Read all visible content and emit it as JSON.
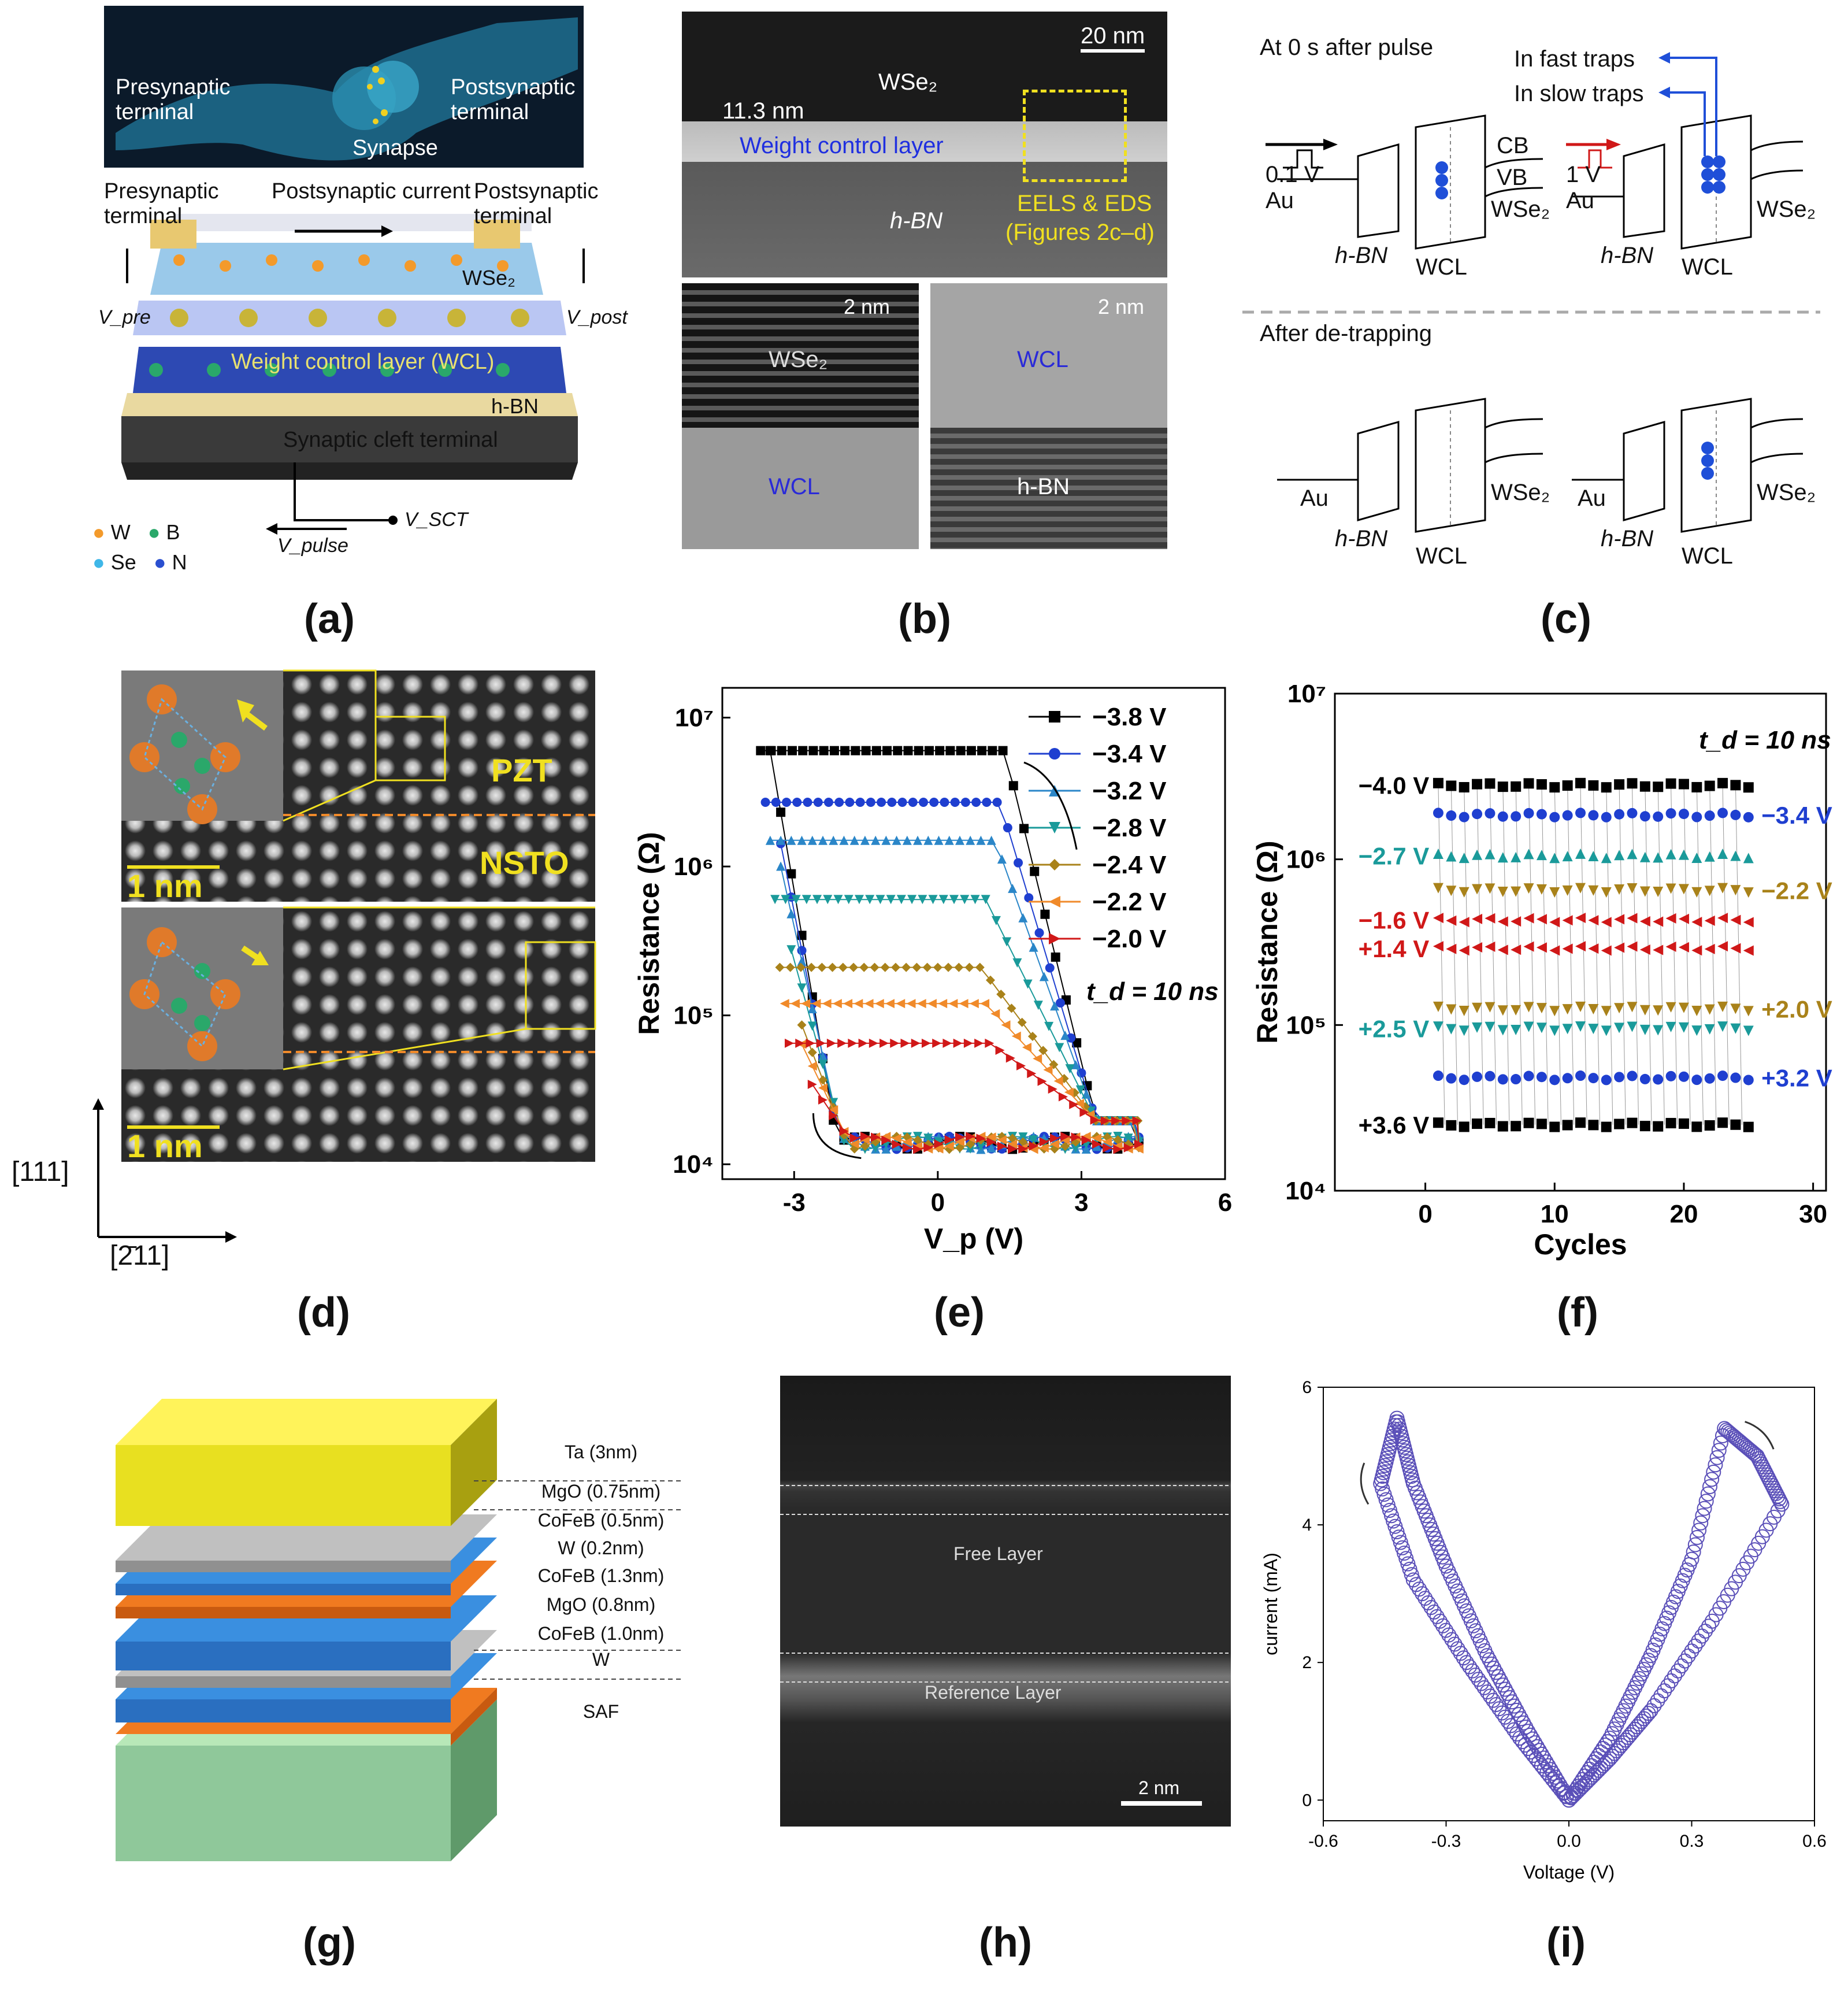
{
  "captions": [
    "(a)",
    "(b)",
    "(c)",
    "(d)",
    "(e)",
    "(f)",
    "(g)",
    "(h)",
    "(i)"
  ],
  "panel_a": {
    "neuron_labels": {
      "pre": "Presynaptic terminal",
      "post": "Postsynaptic terminal",
      "syn": "Synapse"
    },
    "pre_terminal": "Presynaptic terminal",
    "post_current": "Postsynaptic current",
    "post_terminal": "Postsynaptic terminal",
    "wse2": "WSe₂",
    "wcl": "Weight control layer (WCL)",
    "hbn": "h-BN",
    "sct": "Synaptic cleft terminal",
    "vpre": "V_pre",
    "vpost": "V_post",
    "vsct": "V_SCT",
    "vpulse": "V_pulse",
    "legend": [
      {
        "sym": "W",
        "color": "#f39a2b"
      },
      {
        "sym": "B",
        "color": "#2aa86a"
      },
      {
        "sym": "Se",
        "color": "#3fb7e8"
      },
      {
        "sym": "N",
        "color": "#2a4fd0"
      }
    ]
  },
  "panel_b": {
    "scale_top": "20 nm",
    "thickness": "11.3 nm",
    "wse2": "WSe₂",
    "wcl_label": "Weight control layer",
    "hbn": "h-BN",
    "eels": "EELS & EDS",
    "figs": "(Figures 2c–d)",
    "scale_bl": "2 nm",
    "scale_br": "2 nm",
    "bl_top": "WSe₂",
    "bl_bot": "WCL",
    "br_top": "WCL",
    "br_bot": "h-BN"
  },
  "panel_c": {
    "header1": "At 0 s after pulse",
    "fast": "In fast traps",
    "slow": "In slow traps",
    "v1": "0.1 V",
    "v2": "1 V",
    "au": "Au",
    "hbn": "h-BN",
    "wcl": "WCL",
    "cb": "CB",
    "vb": "VB",
    "wse2": "WSe₂",
    "header2": "After de-trapping"
  },
  "panel_d": {
    "pzt": "PZT",
    "nsto": "NSTO",
    "scale": "1 nm",
    "axis_v": "[111]",
    "axis_h": "[2̄11]"
  },
  "panel_e": {
    "chart_data": {
      "type": "line",
      "xlabel": "V_p (V)",
      "ylabel": "Resistance (Ω)",
      "xlim": [
        -4.5,
        6
      ],
      "ylim_log10": [
        3.9,
        7.2
      ],
      "xticks": [
        "-3",
        "0",
        "3",
        "6"
      ],
      "yticks": [
        "10⁴",
        "10⁵",
        "10⁶",
        "10⁷"
      ],
      "annotation": "t_d = 10 ns",
      "series": [
        {
          "name": "−3.8 V",
          "color": "#000000",
          "marker": "square",
          "high": 6000000.0,
          "off_onset": 1.4
        },
        {
          "name": "−3.4 V",
          "color": "#1f3fd0",
          "marker": "circle",
          "high": 2700000.0,
          "off_onset": 1.3
        },
        {
          "name": "−3.2 V",
          "color": "#2a86c8",
          "marker": "triangle-up",
          "high": 1500000.0,
          "off_onset": 1.2
        },
        {
          "name": "−2.8 V",
          "color": "#1a9a9a",
          "marker": "triangle-down",
          "high": 600000.0,
          "off_onset": 1.0
        },
        {
          "name": "−2.4 V",
          "color": "#a9821a",
          "marker": "diamond",
          "high": 210000.0,
          "off_onset": 0.9
        },
        {
          "name": "−2.2 V",
          "color": "#f08a2a",
          "marker": "triangle-left",
          "high": 120000.0,
          "off_onset": 1.0
        },
        {
          "name": "−2.0 V",
          "color": "#d01818",
          "marker": "triangle-right",
          "high": 65000.0,
          "off_onset": 1.1
        }
      ],
      "low_state": 14000.0
    }
  },
  "panel_f": {
    "chart_data": {
      "type": "scatter",
      "xlabel": "Cycles",
      "ylabel": "Resistance (Ω)",
      "xlim": [
        -7,
        31
      ],
      "ylim_log10": [
        4,
        7
      ],
      "xticks": [
        "0",
        "10",
        "20",
        "30"
      ],
      "yticks": [
        "10⁴",
        "10⁵",
        "10⁶",
        "10⁷"
      ],
      "annotation": "t_d = 10 ns",
      "levels": [
        {
          "label": "−4.0 V",
          "side": "left",
          "value": 2800000.0,
          "color": "#000000",
          "marker": "square"
        },
        {
          "label": "−3.4 V",
          "side": "right",
          "value": 1850000.0,
          "color": "#1f3fd0",
          "marker": "circle"
        },
        {
          "label": "−2.7 V",
          "side": "left",
          "value": 1050000.0,
          "color": "#1a9a9a",
          "marker": "triangle-up"
        },
        {
          "label": "−2.2 V",
          "side": "right",
          "value": 650000.0,
          "color": "#a9821a",
          "marker": "triangle-down"
        },
        {
          "label": "−1.6 V",
          "side": "left",
          "value": 430000.0,
          "color": "#d01818",
          "marker": "triangle-left"
        },
        {
          "label": "+1.4 V",
          "side": "left",
          "value": 290000.0,
          "color": "#d01818",
          "marker": "triangle-left"
        },
        {
          "label": "+2.0 V",
          "side": "right",
          "value": 125000.0,
          "color": "#a9821a",
          "marker": "triangle-down"
        },
        {
          "label": "+2.5 V",
          "side": "left",
          "value": 95000.0,
          "color": "#1a9a9a",
          "marker": "triangle-down"
        },
        {
          "label": "+3.2 V",
          "side": "right",
          "value": 48000.0,
          "color": "#1f3fd0",
          "marker": "circle"
        },
        {
          "label": "+3.6 V",
          "side": "left",
          "value": 25000.0,
          "color": "#000000",
          "marker": "square"
        }
      ],
      "cycles": 25
    }
  },
  "panel_g": {
    "layers": [
      "Ta (3nm)",
      "MgO (0.75nm)",
      "CoFeB (0.5nm)",
      "W (0.2nm)",
      "CoFeB (1.3nm)",
      "MgO (0.8nm)",
      "CoFeB (1.0nm)",
      "W",
      "SAF"
    ]
  },
  "panel_h": {
    "free": "Free Layer",
    "ref": "Reference Layer",
    "scale": "2 nm"
  },
  "panel_i": {
    "chart_data": {
      "type": "line",
      "xlabel": "Voltage (V)",
      "ylabel": "current (mA)",
      "xlim": [
        -0.6,
        0.6
      ],
      "ylim": [
        -0.3,
        6
      ],
      "xticks": [
        "-0.6",
        "-0.3",
        "0.0",
        "0.3",
        "0.6"
      ],
      "yticks": [
        "0",
        "2",
        "4",
        "6"
      ],
      "color": "#5a4fb8",
      "branches": [
        {
          "name": "negative-up",
          "points": [
            [
              0,
              0
            ],
            [
              -0.1,
              1.0
            ],
            [
              -0.2,
              2.1
            ],
            [
              -0.3,
              3.4
            ],
            [
              -0.38,
              4.6
            ],
            [
              -0.42,
              5.55
            ]
          ]
        },
        {
          "name": "negative-down",
          "points": [
            [
              -0.42,
              5.55
            ],
            [
              -0.46,
              4.6
            ],
            [
              -0.38,
              3.2
            ],
            [
              -0.25,
              2.0
            ],
            [
              -0.12,
              0.9
            ],
            [
              0,
              0
            ]
          ]
        },
        {
          "name": "positive-up",
          "points": [
            [
              0,
              0
            ],
            [
              0.1,
              0.9
            ],
            [
              0.2,
              2.1
            ],
            [
              0.3,
              3.5
            ],
            [
              0.38,
              5.4
            ]
          ]
        },
        {
          "name": "positive-down",
          "points": [
            [
              0.38,
              5.4
            ],
            [
              0.46,
              5.0
            ],
            [
              0.52,
              4.3
            ],
            [
              0.35,
              2.6
            ],
            [
              0.2,
              1.3
            ],
            [
              0.1,
              0.6
            ],
            [
              0,
              0
            ]
          ]
        }
      ]
    }
  }
}
